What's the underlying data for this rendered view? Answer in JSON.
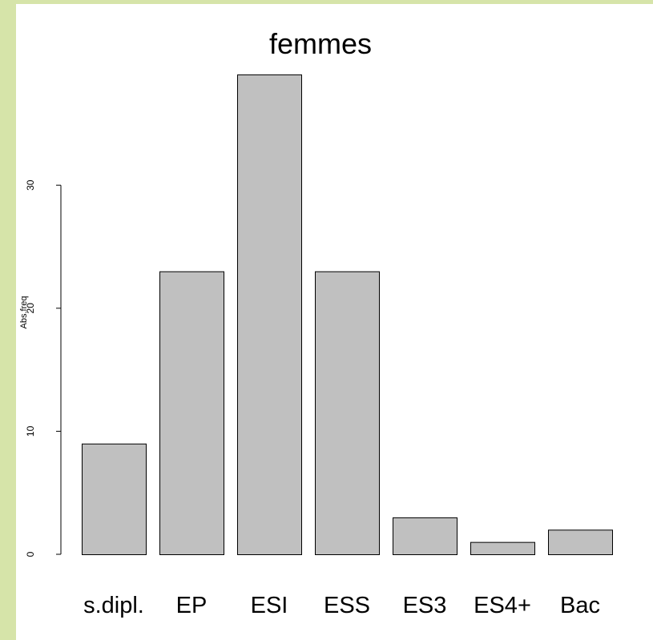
{
  "chart_data": {
    "type": "bar",
    "title": "femmes",
    "ylabel": "Abs.freq",
    "xlabel": "",
    "categories": [
      "s.dipl.",
      "EP",
      "ESI",
      "ESS",
      "ES3",
      "ES4+",
      "Bac"
    ],
    "values": [
      9,
      23,
      39,
      23,
      3,
      1,
      2
    ],
    "yticks": [
      0,
      10,
      20,
      30
    ],
    "ytick_labels": [
      "0",
      "10",
      "20",
      "30"
    ],
    "ylim": [
      0,
      39
    ],
    "grid": false,
    "legend": "none",
    "bar_color": "#c0c0c0",
    "bar_border_color": "#000000"
  },
  "colors": {
    "page_background": "#d6e4a9",
    "plot_background": "#ffffff"
  }
}
